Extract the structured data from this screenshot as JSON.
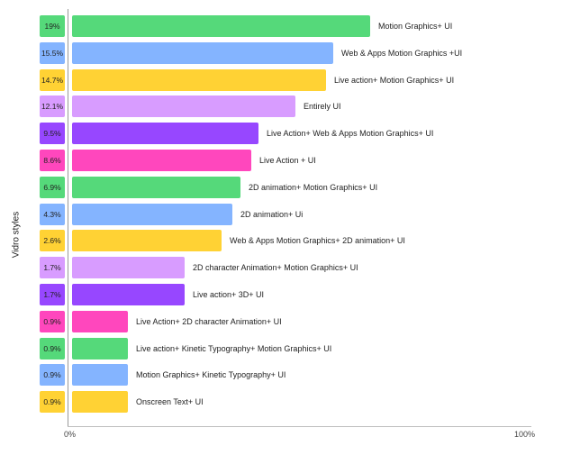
{
  "chart_data": {
    "type": "bar",
    "orientation": "horizontal",
    "ylabel": "Vidro styles",
    "xlabel": "",
    "xlim": [
      0,
      100
    ],
    "x_ticks": [
      "0%",
      "100%"
    ],
    "categories": [
      "Motion Graphics+ UI",
      "Web & Apps Motion Graphics +UI",
      "Live action+ Motion Graphics+ UI",
      "Entirely UI",
      "Live Action+ Web & Apps Motion Graphics+ UI",
      "Live Action + UI",
      "2D animation+ Motion Graphics+ UI",
      "2D animation+ Ui",
      "Web & Apps Motion Graphics+ 2D animation+ UI",
      "2D character Animation+ Motion Graphics+ UI",
      "Live action+ 3D+ UI",
      "Live Action+ 2D character Animation+ UI",
      "Live action+ Kinetic Typography+ Motion Graphics+ UI",
      "Motion Graphics+ Kinetic Typography+ UI",
      "Onscreen Text+ UI"
    ],
    "values": [
      19,
      15.5,
      14.7,
      12.1,
      9.5,
      8.6,
      6.9,
      4.3,
      2.6,
      1.7,
      1.7,
      0.9,
      0.9,
      0.9,
      0.9
    ],
    "value_labels": [
      "19%",
      "15.5%",
      "14.7%",
      "12.1%",
      "9.5%",
      "8.6%",
      "6.9%",
      "4.3%",
      "2.6%",
      "1.7%",
      "1.7%",
      "0.9%",
      "0.9%",
      "0.9%",
      "0.9%"
    ],
    "colors": [
      "#55d97a",
      "#84b4ff",
      "#ffd234",
      "#d89cff",
      "#9747ff",
      "#ff47bd",
      "#55d97a",
      "#84b4ff",
      "#ffd234",
      "#d89cff",
      "#9747ff",
      "#ff47bd",
      "#55d97a",
      "#84b4ff",
      "#ffd234"
    ],
    "grid": false,
    "legend": "none"
  }
}
